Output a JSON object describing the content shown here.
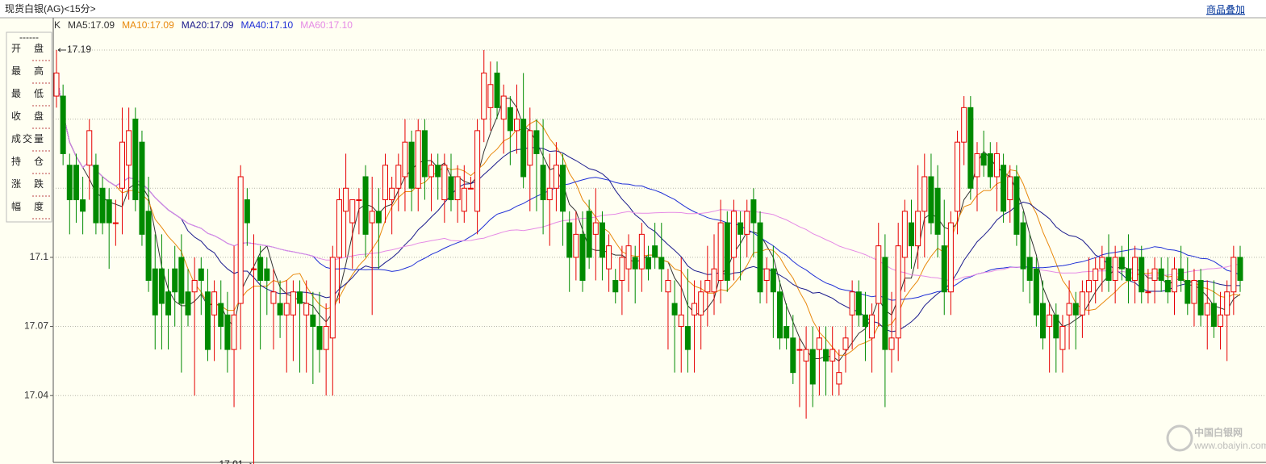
{
  "chart_data": {
    "type": "candlestick",
    "title": "现货白银(AG)<15分>",
    "overlay_button": "商品叠加",
    "k_label": "K",
    "moving_averages": [
      {
        "label": "MA5:17.09",
        "period": 5,
        "color": "#333333"
      },
      {
        "label": "MA10:17.09",
        "period": 10,
        "color": "#e8890c"
      },
      {
        "label": "MA20:17.09",
        "period": 20,
        "color": "#1a1a8c"
      },
      {
        "label": "MA40:17.10",
        "period": 40,
        "color": "#1f2fd6"
      },
      {
        "label": "MA60:17.10",
        "period": 60,
        "color": "#e58ae5"
      }
    ],
    "side_panel": [
      "------",
      "开 盘",
      "最 高",
      "最 低",
      "收 盘",
      "成交量",
      "持 仓",
      "涨 跌",
      "幅 度"
    ],
    "max_annotation": 17.19,
    "min_annotation": 17.01,
    "watermark": [
      "中国白银网",
      "www.obaiyin.com"
    ],
    "up_color": "#e60000",
    "down_color": "#008a00",
    "ylim": [
      17.011,
      17.204
    ],
    "yticks": [
      17.04,
      17.07,
      17.1
    ],
    "gridlines": [
      17.13,
      17.16,
      17.19
    ],
    "grid": true,
    "ohlc": [
      [
        17.17,
        17.19,
        17.165,
        17.18
      ],
      [
        17.17,
        17.175,
        17.14,
        17.145
      ],
      [
        17.14,
        17.145,
        17.11,
        17.125
      ],
      [
        17.14,
        17.145,
        17.115,
        17.125
      ],
      [
        17.125,
        17.135,
        17.11,
        17.12
      ],
      [
        17.14,
        17.16,
        17.125,
        17.155
      ],
      [
        17.14,
        17.145,
        17.11,
        17.115
      ],
      [
        17.13,
        17.135,
        17.11,
        17.115
      ],
      [
        17.125,
        17.13,
        17.095,
        17.115
      ],
      [
        17.115,
        17.125,
        17.105,
        17.115
      ],
      [
        17.13,
        17.165,
        17.11,
        17.15
      ],
      [
        17.14,
        17.165,
        17.125,
        17.155
      ],
      [
        17.16,
        17.165,
        17.12,
        17.125
      ],
      [
        17.15,
        17.155,
        17.105,
        17.11
      ],
      [
        17.12,
        17.135,
        17.085,
        17.09
      ],
      [
        17.095,
        17.11,
        17.06,
        17.075
      ],
      [
        17.095,
        17.11,
        17.06,
        17.08
      ],
      [
        17.085,
        17.095,
        17.06,
        17.075
      ],
      [
        17.095,
        17.105,
        17.07,
        17.085
      ],
      [
        17.1,
        17.11,
        17.05,
        17.08
      ],
      [
        17.085,
        17.095,
        17.07,
        17.075
      ],
      [
        17.085,
        17.1,
        17.04,
        17.09
      ],
      [
        17.095,
        17.1,
        17.075,
        17.09
      ],
      [
        17.085,
        17.095,
        17.055,
        17.06
      ],
      [
        17.075,
        17.09,
        17.055,
        17.085
      ],
      [
        17.08,
        17.09,
        17.06,
        17.07
      ],
      [
        17.075,
        17.085,
        17.05,
        17.06
      ],
      [
        17.06,
        17.105,
        17.035,
        17.075
      ],
      [
        17.08,
        17.14,
        17.06,
        17.135
      ],
      [
        17.125,
        17.13,
        17.105,
        17.115
      ],
      [
        17.095,
        17.11,
        17.01,
        17.095
      ],
      [
        17.1,
        17.105,
        17.06,
        17.09
      ],
      [
        17.095,
        17.1,
        17.075,
        17.09
      ],
      [
        17.08,
        17.095,
        17.06,
        17.085
      ],
      [
        17.08,
        17.09,
        17.065,
        17.075
      ],
      [
        17.075,
        17.09,
        17.05,
        17.08
      ],
      [
        17.075,
        17.09,
        17.055,
        17.085
      ],
      [
        17.085,
        17.09,
        17.05,
        17.08
      ],
      [
        17.075,
        17.09,
        17.05,
        17.08
      ],
      [
        17.075,
        17.085,
        17.045,
        17.07
      ],
      [
        17.07,
        17.085,
        17.05,
        17.06
      ],
      [
        17.06,
        17.08,
        17.04,
        17.07
      ],
      [
        17.065,
        17.105,
        17.04,
        17.1
      ],
      [
        17.1,
        17.13,
        17.08,
        17.125
      ],
      [
        17.12,
        17.145,
        17.1,
        17.13
      ],
      [
        17.115,
        17.125,
        17.095,
        17.125
      ],
      [
        17.125,
        17.13,
        17.11,
        17.125
      ],
      [
        17.135,
        17.14,
        17.1,
        17.11
      ],
      [
        17.115,
        17.135,
        17.075,
        17.12
      ],
      [
        17.12,
        17.13,
        17.095,
        17.115
      ],
      [
        17.125,
        17.145,
        17.115,
        17.14
      ],
      [
        17.125,
        17.135,
        17.11,
        17.13
      ],
      [
        17.13,
        17.145,
        17.12,
        17.14
      ],
      [
        17.135,
        17.16,
        17.12,
        17.15
      ],
      [
        17.15,
        17.155,
        17.12,
        17.13
      ],
      [
        17.13,
        17.16,
        17.12,
        17.155
      ],
      [
        17.155,
        17.16,
        17.125,
        17.135
      ],
      [
        17.135,
        17.145,
        17.12,
        17.14
      ],
      [
        17.14,
        17.145,
        17.125,
        17.135
      ],
      [
        17.125,
        17.145,
        17.115,
        17.14
      ],
      [
        17.135,
        17.145,
        17.12,
        17.125
      ],
      [
        17.125,
        17.14,
        17.115,
        17.135
      ],
      [
        17.12,
        17.14,
        17.115,
        17.13
      ],
      [
        17.13,
        17.135,
        17.13,
        17.13
      ],
      [
        17.12,
        17.16,
        17.11,
        17.155
      ],
      [
        17.16,
        17.19,
        17.15,
        17.18
      ],
      [
        17.165,
        17.185,
        17.155,
        17.175
      ],
      [
        17.18,
        17.185,
        17.16,
        17.165
      ],
      [
        17.16,
        17.175,
        17.145,
        17.17
      ],
      [
        17.165,
        17.17,
        17.14,
        17.155
      ],
      [
        17.155,
        17.175,
        17.145,
        17.16
      ],
      [
        17.16,
        17.18,
        17.13,
        17.135
      ],
      [
        17.14,
        17.165,
        17.12,
        17.155
      ],
      [
        17.155,
        17.16,
        17.12,
        17.145
      ],
      [
        17.14,
        17.16,
        17.11,
        17.125
      ],
      [
        17.125,
        17.145,
        17.105,
        17.13
      ],
      [
        17.13,
        17.15,
        17.12,
        17.14
      ],
      [
        17.14,
        17.145,
        17.105,
        17.12
      ],
      [
        17.115,
        17.12,
        17.085,
        17.1
      ],
      [
        17.1,
        17.12,
        17.09,
        17.11
      ],
      [
        17.11,
        17.12,
        17.085,
        17.09
      ],
      [
        17.12,
        17.125,
        17.095,
        17.1
      ],
      [
        17.11,
        17.13,
        17.09,
        17.115
      ],
      [
        17.115,
        17.12,
        17.09,
        17.1
      ],
      [
        17.095,
        17.11,
        17.085,
        17.105
      ],
      [
        17.09,
        17.095,
        17.08,
        17.085
      ],
      [
        17.09,
        17.105,
        17.075,
        17.1
      ],
      [
        17.095,
        17.11,
        17.085,
        17.105
      ],
      [
        17.1,
        17.105,
        17.08,
        17.095
      ],
      [
        17.095,
        17.115,
        17.085,
        17.11
      ],
      [
        17.1,
        17.105,
        17.09,
        17.095
      ],
      [
        17.105,
        17.115,
        17.095,
        17.1
      ],
      [
        17.1,
        17.115,
        17.085,
        17.095
      ],
      [
        17.085,
        17.095,
        17.06,
        17.09
      ],
      [
        17.08,
        17.09,
        17.05,
        17.075
      ],
      [
        17.07,
        17.1,
        17.05,
        17.075
      ],
      [
        17.07,
        17.095,
        17.05,
        17.06
      ],
      [
        17.075,
        17.09,
        17.05,
        17.08
      ],
      [
        17.075,
        17.09,
        17.06,
        17.085
      ],
      [
        17.085,
        17.105,
        17.07,
        17.09
      ],
      [
        17.085,
        17.11,
        17.075,
        17.095
      ],
      [
        17.09,
        17.125,
        17.08,
        17.115
      ],
      [
        17.115,
        17.12,
        17.085,
        17.09
      ],
      [
        17.1,
        17.125,
        17.09,
        17.12
      ],
      [
        17.115,
        17.12,
        17.09,
        17.11
      ],
      [
        17.11,
        17.125,
        17.1,
        17.12
      ],
      [
        17.125,
        17.13,
        17.1,
        17.115
      ],
      [
        17.115,
        17.12,
        17.08,
        17.085
      ],
      [
        17.09,
        17.1,
        17.08,
        17.095
      ],
      [
        17.095,
        17.105,
        17.065,
        17.085
      ],
      [
        17.085,
        17.09,
        17.06,
        17.065
      ],
      [
        17.07,
        17.08,
        17.06,
        17.065
      ],
      [
        17.065,
        17.075,
        17.045,
        17.05
      ],
      [
        17.06,
        17.065,
        17.035,
        17.06
      ],
      [
        17.055,
        17.07,
        17.03,
        17.06
      ],
      [
        17.06,
        17.07,
        17.035,
        17.045
      ],
      [
        17.06,
        17.07,
        17.04,
        17.065
      ],
      [
        17.06,
        17.07,
        17.04,
        17.055
      ],
      [
        17.055,
        17.07,
        17.04,
        17.06
      ],
      [
        17.045,
        17.06,
        17.04,
        17.05
      ],
      [
        17.06,
        17.07,
        17.05,
        17.065
      ],
      [
        17.075,
        17.09,
        17.06,
        17.085
      ],
      [
        17.085,
        17.09,
        17.07,
        17.075
      ],
      [
        17.075,
        17.085,
        17.055,
        17.07
      ],
      [
        17.065,
        17.08,
        17.05,
        17.075
      ],
      [
        17.08,
        17.115,
        17.07,
        17.105
      ],
      [
        17.1,
        17.11,
        17.035,
        17.06
      ],
      [
        17.06,
        17.085,
        17.05,
        17.065
      ],
      [
        17.065,
        17.115,
        17.055,
        17.105
      ],
      [
        17.1,
        17.125,
        17.085,
        17.12
      ],
      [
        17.115,
        17.125,
        17.095,
        17.105
      ],
      [
        17.105,
        17.14,
        17.095,
        17.12
      ],
      [
        17.12,
        17.145,
        17.1,
        17.135
      ],
      [
        17.135,
        17.145,
        17.11,
        17.115
      ],
      [
        17.13,
        17.14,
        17.1,
        17.11
      ],
      [
        17.105,
        17.125,
        17.075,
        17.085
      ],
      [
        17.085,
        17.12,
        17.075,
        17.115
      ],
      [
        17.12,
        17.155,
        17.11,
        17.15
      ],
      [
        17.15,
        17.17,
        17.14,
        17.165
      ],
      [
        17.165,
        17.17,
        17.125,
        17.13
      ],
      [
        17.135,
        17.15,
        17.12,
        17.145
      ],
      [
        17.145,
        17.155,
        17.135,
        17.14
      ],
      [
        17.145,
        17.15,
        17.13,
        17.135
      ],
      [
        17.135,
        17.15,
        17.12,
        17.145
      ],
      [
        17.14,
        17.145,
        17.115,
        17.12
      ],
      [
        17.125,
        17.14,
        17.115,
        17.135
      ],
      [
        17.135,
        17.14,
        17.105,
        17.11
      ],
      [
        17.115,
        17.12,
        17.085,
        17.095
      ],
      [
        17.1,
        17.11,
        17.08,
        17.09
      ],
      [
        17.095,
        17.1,
        17.07,
        17.075
      ],
      [
        17.08,
        17.09,
        17.06,
        17.065
      ],
      [
        17.07,
        17.08,
        17.05,
        17.075
      ],
      [
        17.075,
        17.08,
        17.05,
        17.065
      ],
      [
        17.06,
        17.075,
        17.05,
        17.07
      ],
      [
        17.075,
        17.09,
        17.06,
        17.08
      ],
      [
        17.08,
        17.085,
        17.06,
        17.075
      ],
      [
        17.075,
        17.09,
        17.065,
        17.085
      ],
      [
        17.085,
        17.1,
        17.075,
        17.09
      ],
      [
        17.09,
        17.1,
        17.08,
        17.095
      ],
      [
        17.095,
        17.105,
        17.085,
        17.1
      ],
      [
        17.1,
        17.11,
        17.085,
        17.09
      ],
      [
        17.09,
        17.105,
        17.08,
        17.1
      ],
      [
        17.1,
        17.105,
        17.09,
        17.095
      ],
      [
        17.095,
        17.11,
        17.08,
        17.09
      ],
      [
        17.09,
        17.105,
        17.08,
        17.1
      ],
      [
        17.1,
        17.105,
        17.08,
        17.085
      ],
      [
        17.085,
        17.095,
        17.08,
        17.085
      ],
      [
        17.09,
        17.1,
        17.08,
        17.095
      ],
      [
        17.095,
        17.1,
        17.085,
        17.09
      ],
      [
        17.09,
        17.1,
        17.08,
        17.085
      ],
      [
        17.085,
        17.1,
        17.075,
        17.095
      ],
      [
        17.095,
        17.105,
        17.085,
        17.09
      ],
      [
        17.09,
        17.1,
        17.075,
        17.08
      ],
      [
        17.08,
        17.095,
        17.07,
        17.09
      ],
      [
        17.09,
        17.095,
        17.07,
        17.075
      ],
      [
        17.075,
        17.09,
        17.06,
        17.08
      ],
      [
        17.08,
        17.09,
        17.065,
        17.07
      ],
      [
        17.07,
        17.085,
        17.06,
        17.075
      ],
      [
        17.075,
        17.09,
        17.055,
        17.085
      ],
      [
        17.085,
        17.105,
        17.075,
        17.1
      ],
      [
        17.1,
        17.105,
        17.085,
        17.09
      ]
    ]
  }
}
